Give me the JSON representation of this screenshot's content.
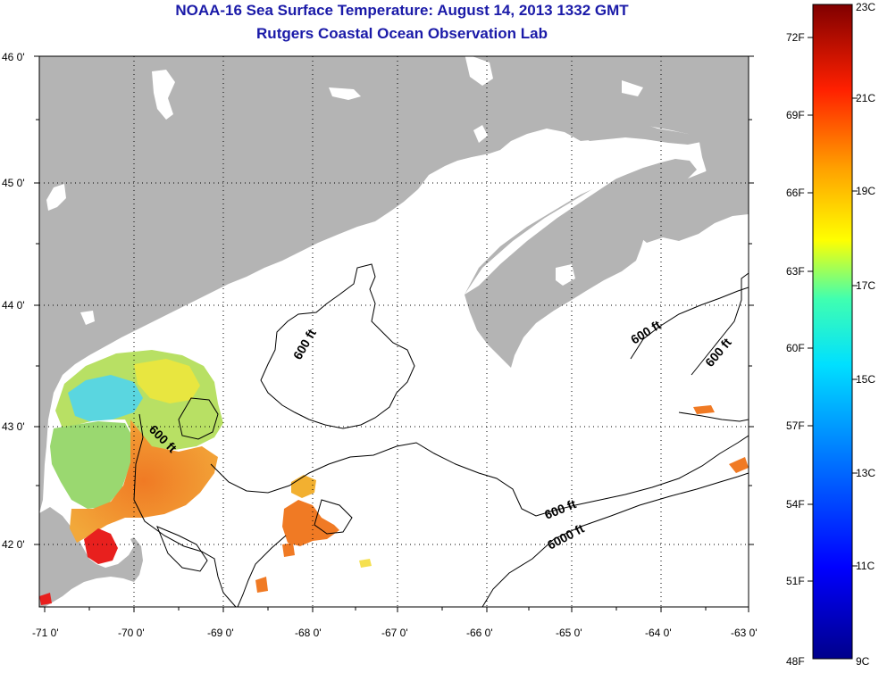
{
  "title": "NOAA-16 Sea Surface Temperature:  August 14, 2013 1332 GMT",
  "subtitle": "Rutgers Coastal Ocean Observation Lab",
  "lat_labels": [
    "46 0'",
    "45 0'",
    "44 0'",
    "43 0'",
    "42 0'"
  ],
  "lon_labels": [
    "-71 0'",
    "-70 0'",
    "-69 0'",
    "-68 0'",
    "-67 0'",
    "-66 0'",
    "-65 0'",
    "-64 0'",
    "-63 0'"
  ],
  "contour_labels": {
    "c1": "600 ft",
    "c2": "600 ft",
    "c3": "600 ft",
    "c4": "600 ft",
    "c5": "600 ft",
    "c6": "6000 ft"
  },
  "colorbar": {
    "fahrenheit": [
      "72F",
      "69F",
      "66F",
      "63F",
      "60F",
      "57F",
      "54F",
      "51F",
      "48F"
    ],
    "celsius": [
      "23C",
      "21C",
      "19C",
      "17C",
      "15C",
      "13C",
      "11C",
      "9C"
    ]
  },
  "colors": {
    "land": "#b4b4b4",
    "title": "#1a1aa8",
    "warm": "#f08a28",
    "hot": "#e8201e",
    "mid": "#e8e640",
    "cool": "#5ad6e0"
  }
}
